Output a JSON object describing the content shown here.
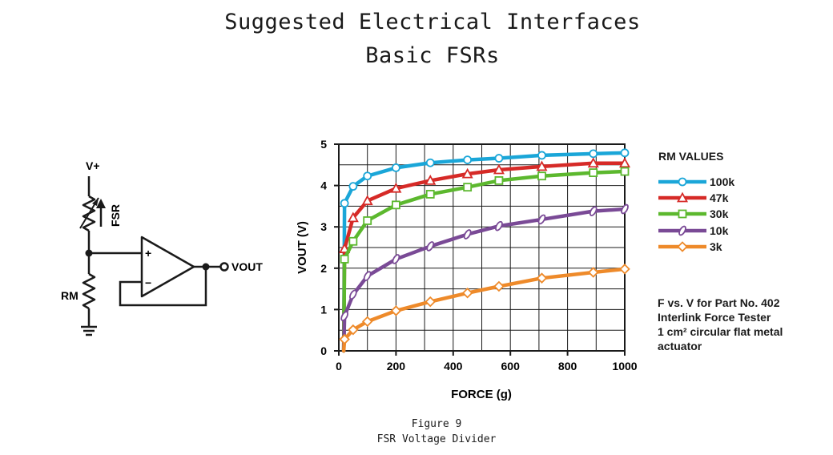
{
  "page": {
    "title_line1": "Suggested Electrical Interfaces",
    "title_line2": "Basic FSRs",
    "caption_line1": "Figure 9",
    "caption_line2": "FSR Voltage Divider"
  },
  "circuit": {
    "supply_label": "V+",
    "fsr_label": "FSR",
    "rm_label": "RM",
    "vout_label": "VOUT",
    "plus_label": "+",
    "minus_label": "−"
  },
  "legend": {
    "title": "RM VALUES",
    "items": [
      "100k",
      "47k",
      "30k",
      "10k",
      "3k"
    ]
  },
  "note": {
    "line1": "F vs. V for Part No. 402",
    "line2": "Interlink Force Tester",
    "line3": "1 cm² circular flat metal",
    "line4": "actuator"
  },
  "colors": {
    "100k": "#1aa6d8",
    "47k": "#d62a27",
    "30k": "#5cb82e",
    "10k": "#7a4a96",
    "3k": "#ee8a2a"
  },
  "chart_data": {
    "type": "line",
    "xlabel": "FORCE (g)",
    "ylabel": "VOUT (V)",
    "xlim": [
      0,
      1000
    ],
    "ylim": [
      0,
      5
    ],
    "xticks": [
      0,
      200,
      400,
      600,
      800,
      1000
    ],
    "yticks": [
      0,
      1,
      2,
      3,
      4,
      5
    ],
    "grid": true,
    "legend_position": "right",
    "series": [
      {
        "name": "100k",
        "marker": "circle",
        "x": [
          20,
          50,
          100,
          200,
          320,
          450,
          560,
          710,
          890,
          1000
        ],
        "y": [
          3.57,
          3.98,
          4.23,
          4.43,
          4.55,
          4.62,
          4.66,
          4.73,
          4.77,
          4.79
        ]
      },
      {
        "name": "47k",
        "marker": "triangle",
        "x": [
          20,
          50,
          100,
          200,
          320,
          450,
          560,
          710,
          890,
          1000
        ],
        "y": [
          2.47,
          3.22,
          3.63,
          3.93,
          4.12,
          4.28,
          4.38,
          4.46,
          4.54,
          4.54
        ]
      },
      {
        "name": "30k",
        "marker": "square",
        "x": [
          20,
          50,
          100,
          200,
          320,
          450,
          560,
          710,
          890,
          1000
        ],
        "y": [
          2.22,
          2.65,
          3.15,
          3.53,
          3.79,
          3.96,
          4.12,
          4.23,
          4.31,
          4.34
        ]
      },
      {
        "name": "10k",
        "marker": "ellipse",
        "x": [
          20,
          50,
          100,
          200,
          320,
          450,
          560,
          710,
          890,
          1000
        ],
        "y": [
          0.84,
          1.36,
          1.81,
          2.22,
          2.53,
          2.82,
          3.02,
          3.18,
          3.38,
          3.43
        ]
      },
      {
        "name": "3k",
        "marker": "diamond",
        "x": [
          20,
          50,
          100,
          200,
          320,
          450,
          560,
          710,
          890,
          1000
        ],
        "y": [
          0.28,
          0.51,
          0.71,
          0.97,
          1.19,
          1.4,
          1.56,
          1.76,
          1.9,
          1.98
        ]
      }
    ]
  }
}
